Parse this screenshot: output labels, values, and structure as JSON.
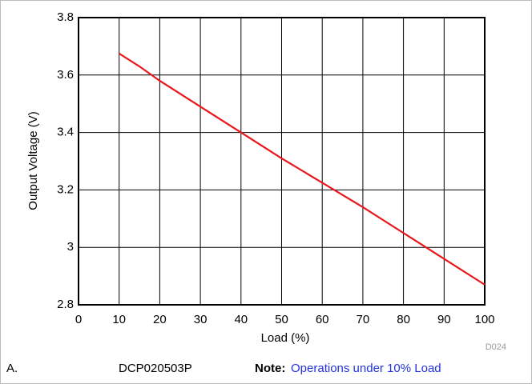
{
  "chart_data": {
    "type": "line",
    "xlabel": "Load (%)",
    "ylabel": "Output Voltage (V)",
    "x": [
      10,
      15,
      20,
      30,
      40,
      50,
      60,
      70,
      80,
      90,
      100
    ],
    "series": [
      {
        "name": "DCP020503P",
        "color": "#e8161b",
        "values": [
          3.675,
          3.63,
          3.58,
          3.49,
          3.4,
          3.31,
          3.225,
          3.14,
          3.05,
          2.96,
          2.87
        ]
      }
    ],
    "xlim": [
      0,
      100
    ],
    "xticks": [
      0,
      10,
      20,
      30,
      40,
      50,
      60,
      70,
      80,
      90,
      100
    ],
    "ylim": [
      2.8,
      3.8
    ],
    "yticks": [
      2.8,
      3,
      3.2,
      3.4,
      3.6,
      3.8
    ],
    "grid": true,
    "annotation": "D024"
  },
  "caption": {
    "label": "A.",
    "device": "DCP020503P",
    "note_label": "Note:",
    "note": "Operations under 10% Load"
  }
}
